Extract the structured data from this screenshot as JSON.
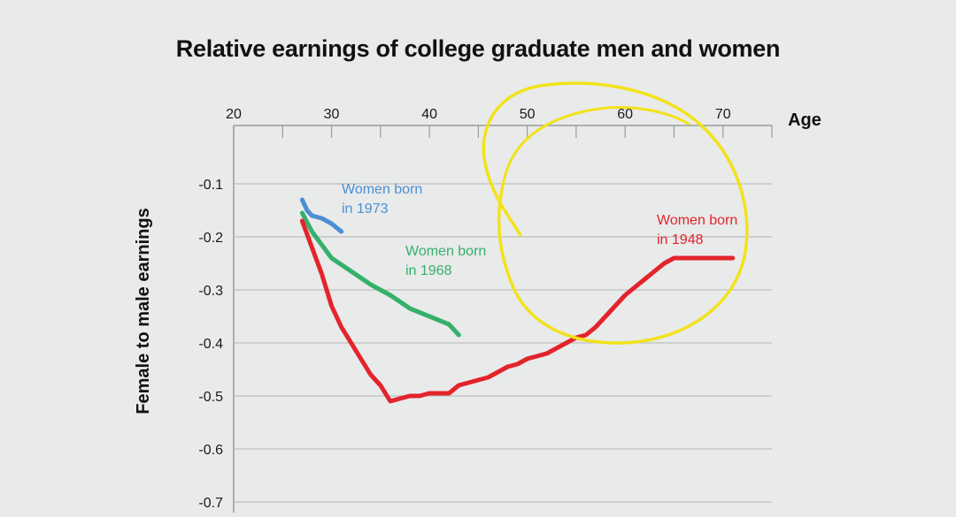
{
  "chart_data": {
    "type": "line",
    "title": "Relative earnings of college graduate men and women",
    "xlabel": "Age",
    "ylabel": "Female to male earnings",
    "x_axis_position": "top",
    "xlim": [
      20,
      75
    ],
    "ylim": [
      -0.72,
      0.01
    ],
    "xticks": [
      20,
      30,
      40,
      50,
      60,
      70
    ],
    "xtick_labels": [
      "20",
      "30",
      "40",
      "50",
      "60",
      "70"
    ],
    "yticks": [
      -0.1,
      -0.2,
      -0.3,
      -0.4,
      -0.5,
      -0.6,
      -0.7
    ],
    "ytick_labels": [
      "-0.1",
      "-0.2",
      "-0.3",
      "-0.4",
      "-0.5",
      "-0.6",
      "-0.7"
    ],
    "grid": true,
    "series": [
      {
        "name": "Women born in 1973",
        "label_lines": [
          "Women born",
          "in 1973"
        ],
        "color": "#4a8fd4",
        "x": [
          27,
          27.5,
          28,
          29,
          30,
          31
        ],
        "y": [
          -0.13,
          -0.15,
          -0.16,
          -0.165,
          -0.175,
          -0.19
        ]
      },
      {
        "name": "Women born in 1968",
        "label_lines": [
          "Women born",
          "in 1968"
        ],
        "color": "#35b06a",
        "x": [
          27,
          28,
          29,
          30,
          32,
          34,
          36,
          38,
          40,
          42,
          43
        ],
        "y": [
          -0.155,
          -0.19,
          -0.215,
          -0.24,
          -0.265,
          -0.29,
          -0.31,
          -0.335,
          -0.35,
          -0.365,
          -0.385
        ]
      },
      {
        "name": "Women born in 1948",
        "label_lines": [
          "Women born",
          "in 1948"
        ],
        "color": "#e3242b",
        "x": [
          27,
          28,
          29,
          30,
          31,
          32,
          33,
          34,
          35,
          36,
          37,
          38,
          39,
          40,
          41,
          42,
          43,
          44,
          45,
          46,
          47,
          48,
          49,
          50,
          51,
          52,
          53,
          54,
          55,
          56,
          57,
          58,
          59,
          60,
          61,
          62,
          63,
          64,
          65,
          66,
          67,
          68,
          69,
          70,
          71
        ],
        "y": [
          -0.17,
          -0.22,
          -0.27,
          -0.33,
          -0.37,
          -0.4,
          -0.43,
          -0.46,
          -0.48,
          -0.51,
          -0.505,
          -0.5,
          -0.5,
          -0.495,
          -0.495,
          -0.495,
          -0.48,
          -0.475,
          -0.47,
          -0.465,
          -0.455,
          -0.445,
          -0.44,
          -0.43,
          -0.425,
          -0.42,
          -0.41,
          -0.4,
          -0.39,
          -0.385,
          -0.37,
          -0.35,
          -0.33,
          -0.31,
          -0.295,
          -0.28,
          -0.265,
          -0.25,
          -0.24,
          -0.24,
          -0.24,
          -0.24,
          -0.24,
          -0.24,
          -0.24
        ]
      }
    ]
  }
}
